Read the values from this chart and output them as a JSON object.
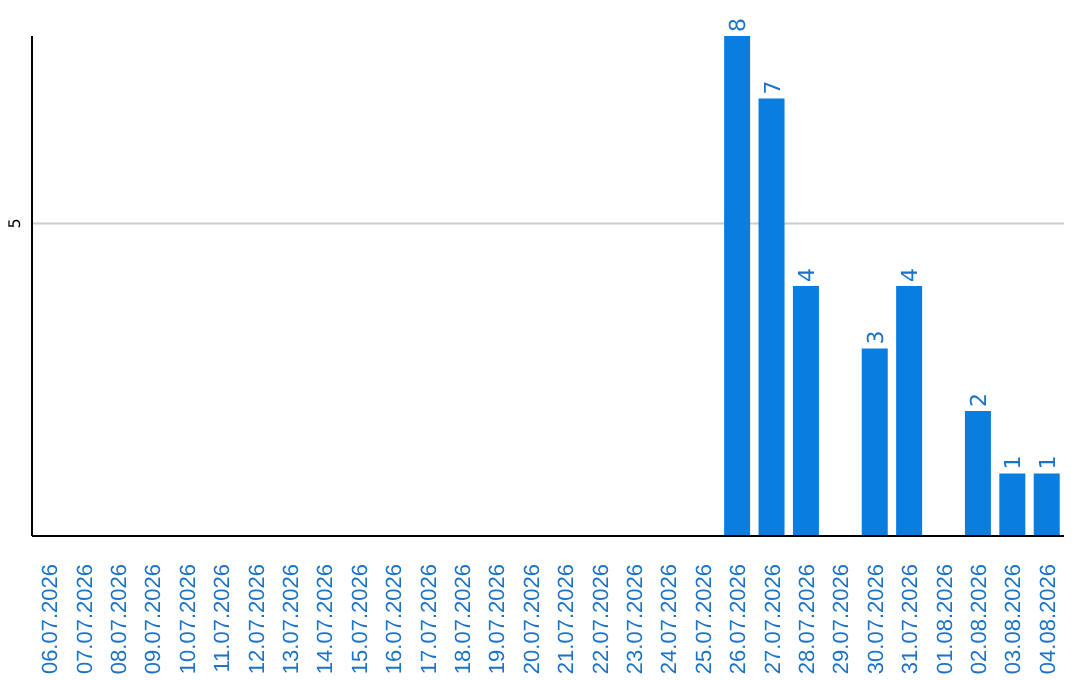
{
  "chart_data": {
    "type": "bar",
    "categories": [
      "06.07.2026",
      "07.07.2026",
      "08.07.2026",
      "09.07.2026",
      "10.07.2026",
      "11.07.2026",
      "12.07.2026",
      "13.07.2026",
      "14.07.2026",
      "15.07.2026",
      "16.07.2026",
      "17.07.2026",
      "18.07.2026",
      "19.07.2026",
      "20.07.2026",
      "21.07.2026",
      "22.07.2026",
      "23.07.2026",
      "24.07.2026",
      "25.07.2026",
      "26.07.2026",
      "27.07.2026",
      "28.07.2026",
      "29.07.2026",
      "30.07.2026",
      "31.07.2026",
      "01.08.2026",
      "02.08.2026",
      "03.08.2026",
      "04.08.2026"
    ],
    "values": [
      null,
      null,
      null,
      null,
      null,
      null,
      null,
      null,
      null,
      null,
      null,
      null,
      null,
      null,
      null,
      null,
      null,
      null,
      null,
      null,
      8,
      7,
      4,
      null,
      3,
      4,
      null,
      2,
      1,
      1
    ],
    "color": "#0a7de0",
    "ylim": [
      0,
      8
    ],
    "yticks": [
      5
    ],
    "grid": "y",
    "data_labels": true
  }
}
